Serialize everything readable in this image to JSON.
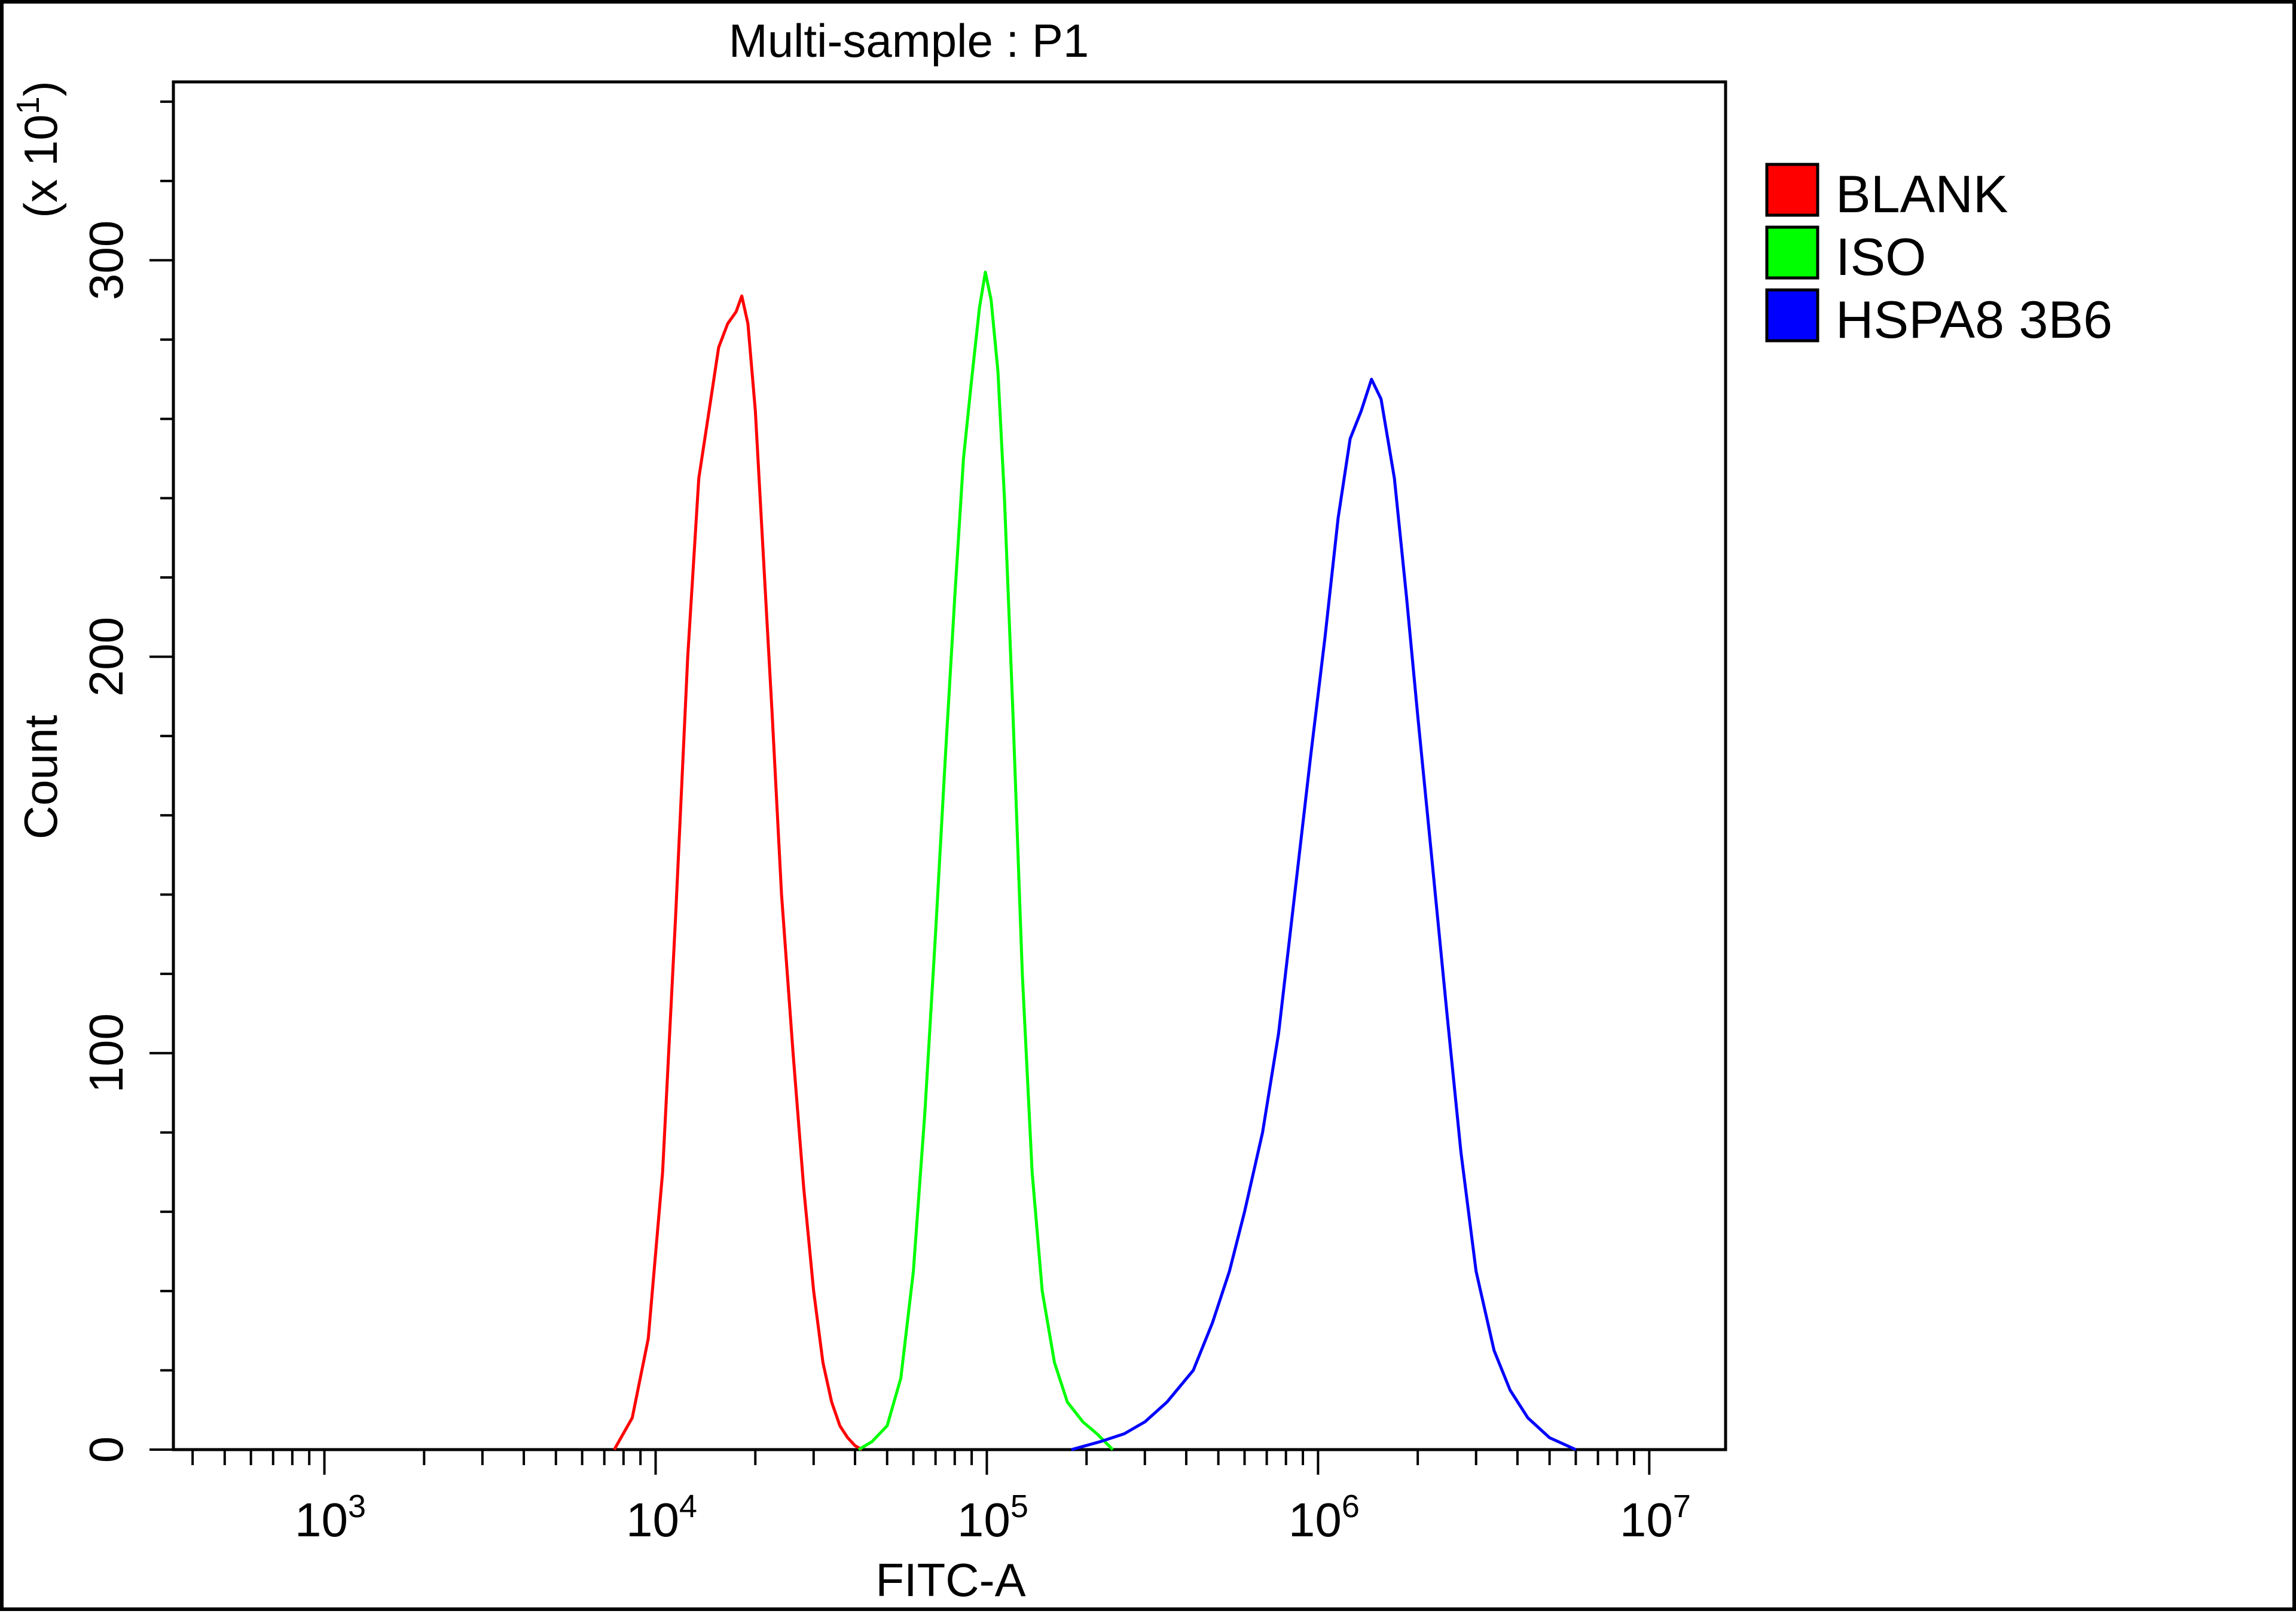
{
  "chart_data": {
    "type": "line",
    "title": "Multi-sample : P1",
    "xlabel": "FITC-A",
    "ylabel": "Count",
    "y_multiplier": "(x 10",
    "y_multiplier_exp": "1",
    "y_multiplier_close": ")",
    "x_scale": "log",
    "xlim": [
      350,
      17000000
    ],
    "ylim": [
      0,
      345
    ],
    "y_ticks": [
      0,
      100,
      200,
      300
    ],
    "y_tick_labels": [
      "0",
      "100",
      "200",
      "300"
    ],
    "x_ticks": [
      1000,
      10000,
      100000,
      1000000,
      10000000
    ],
    "x_tick_labels": [
      {
        "base": "10",
        "exp": "3"
      },
      {
        "base": "10",
        "exp": "4"
      },
      {
        "base": "10",
        "exp": "5"
      },
      {
        "base": "10",
        "exp": "6"
      },
      {
        "base": "10",
        "exp": "7"
      }
    ],
    "grid": false,
    "legend_position": "right-top",
    "series": [
      {
        "name": "BLANK",
        "color": "#ff0000",
        "x": [
          7500,
          8500,
          9500,
          10500,
          11500,
          12500,
          13500,
          14500,
          15500,
          16500,
          17500,
          18200,
          19000,
          20000,
          21000,
          22500,
          24000,
          26000,
          28000,
          30000,
          32000,
          34000,
          36000,
          38000,
          40000,
          42000
        ],
        "y": [
          0,
          8,
          28,
          70,
          135,
          200,
          245,
          262,
          278,
          284,
          287,
          291,
          284,
          262,
          230,
          185,
          140,
          100,
          66,
          40,
          22,
          12,
          6,
          3,
          1,
          0
        ]
      },
      {
        "name": "ISO",
        "color": "#00ff00",
        "x": [
          41000,
          45000,
          50000,
          55000,
          60000,
          65000,
          70000,
          75000,
          80000,
          85000,
          90000,
          95000,
          99000,
          103000,
          108000,
          113000,
          120000,
          128000,
          137000,
          147000,
          160000,
          175000,
          195000,
          215000,
          240000
        ],
        "y": [
          0,
          2,
          6,
          18,
          45,
          85,
          130,
          175,
          215,
          250,
          270,
          288,
          297,
          290,
          272,
          240,
          185,
          120,
          70,
          40,
          22,
          12,
          7,
          4,
          0
        ]
      },
      {
        "name": "HSPA8 3B6",
        "color": "#0000ff",
        "x": [
          180000,
          220000,
          260000,
          300000,
          350000,
          420000,
          480000,
          540000,
          600000,
          680000,
          760000,
          850000,
          950000,
          1050000,
          1150000,
          1250000,
          1350000,
          1450000,
          1550000,
          1700000,
          1850000,
          2000000,
          2200000,
          2450000,
          2700000,
          3000000,
          3400000,
          3800000,
          4300000,
          5000000,
          6000000
        ],
        "y": [
          0,
          2,
          4,
          7,
          12,
          20,
          32,
          45,
          60,
          80,
          105,
          140,
          175,
          205,
          235,
          255,
          262,
          270,
          265,
          245,
          215,
          185,
          150,
          110,
          75,
          45,
          25,
          15,
          8,
          3,
          0
        ]
      }
    ]
  }
}
